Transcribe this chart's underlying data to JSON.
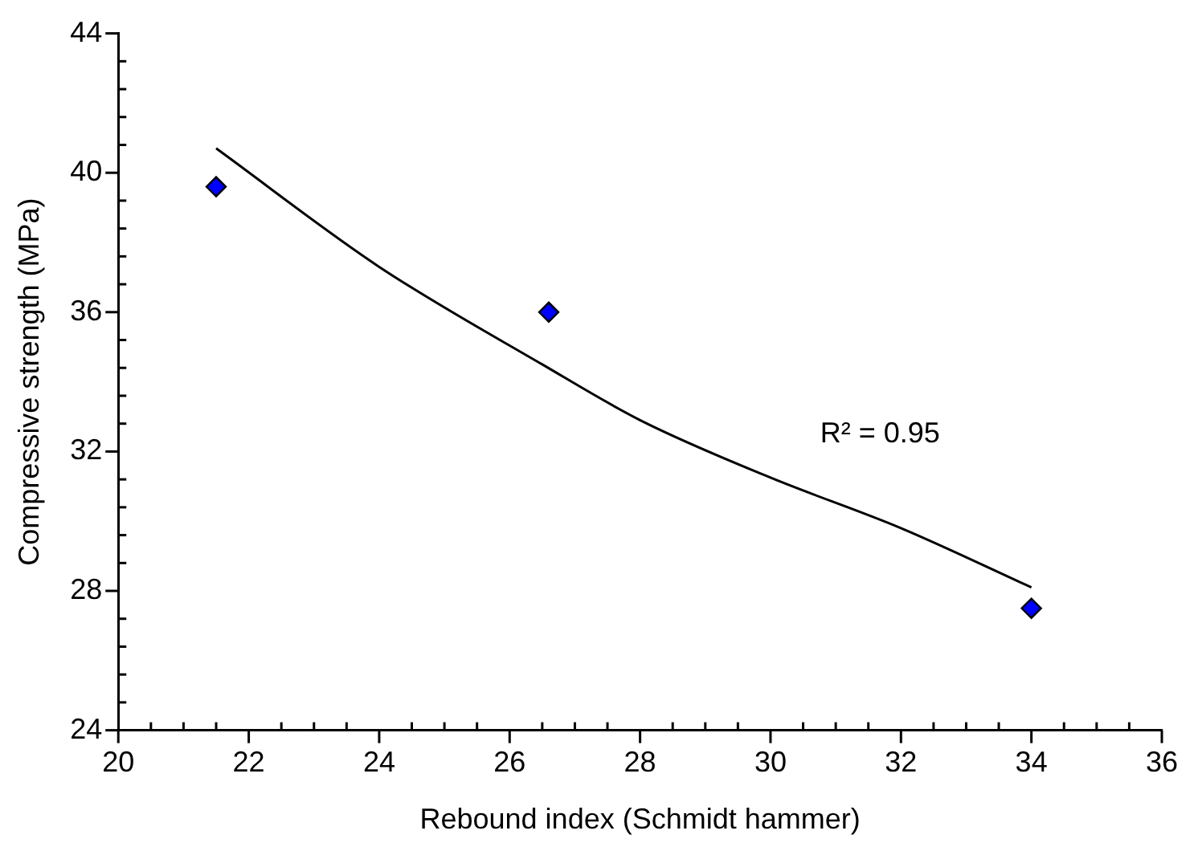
{
  "chart_data": {
    "type": "scatter",
    "xlabel": "Rebound index (Schmidt hammer)",
    "ylabel": "Compressive strength (MPa)",
    "series": [
      {
        "type": "scatter",
        "color": "#0000ff",
        "x": [
          21.5,
          26.6,
          34.0
        ],
        "values": [
          39.6,
          36.0,
          27.5
        ],
        "marker": "diamond"
      },
      {
        "type": "line",
        "color": "#000000",
        "x": [
          21.5,
          24,
          26.5,
          28,
          30,
          32,
          34
        ],
        "values": [
          40.7,
          37.3,
          34.5,
          32.9,
          31.25,
          29.8,
          28.1
        ],
        "marker": "none",
        "line_style": "solid"
      }
    ],
    "xlim": [
      20,
      36
    ],
    "ylim": [
      24,
      44
    ],
    "xticks": [
      20,
      {
        "value": 20.5,
        "label": null
      },
      {
        "value": 21,
        "label": null
      },
      {
        "value": 21.5,
        "label": null
      },
      22,
      {
        "value": 22.5,
        "label": null
      },
      {
        "value": 23,
        "label": null
      },
      {
        "value": 23.5,
        "label": null
      },
      24,
      {
        "value": 24.5,
        "label": null
      },
      {
        "value": 25,
        "label": null
      },
      {
        "value": 25.5,
        "label": null
      },
      26,
      {
        "value": 26.5,
        "label": null
      },
      {
        "value": 27,
        "label": null
      },
      {
        "value": 27.5,
        "label": null
      },
      28,
      {
        "value": 28.5,
        "label": null
      },
      {
        "value": 29,
        "label": null
      },
      {
        "value": 29.5,
        "label": null
      },
      30,
      {
        "value": 30.5,
        "label": null
      },
      {
        "value": 31,
        "label": null
      },
      {
        "value": 31.5,
        "label": null
      },
      32,
      {
        "value": 32.5,
        "label": null
      },
      {
        "value": 33,
        "label": null
      },
      {
        "value": 33.5,
        "label": null
      },
      34,
      {
        "value": 34.5,
        "label": null
      },
      {
        "value": 35,
        "label": null
      },
      {
        "value": 35.5,
        "label": null
      },
      36
    ],
    "yticks": [
      24,
      {
        "value": 24.8,
        "label": null
      },
      {
        "value": 25.6,
        "label": null
      },
      {
        "value": 26.4,
        "label": null
      },
      {
        "value": 27.2,
        "label": null
      },
      28,
      {
        "value": 28.8,
        "label": null
      },
      {
        "value": 29.6,
        "label": null
      },
      {
        "value": 30.4,
        "label": null
      },
      {
        "value": 31.2,
        "label": null
      },
      32,
      {
        "value": 32.8,
        "label": null
      },
      {
        "value": 33.6,
        "label": null
      },
      {
        "value": 34.4,
        "label": null
      },
      {
        "value": 35.2,
        "label": null
      },
      36,
      {
        "value": 36.8,
        "label": null
      },
      {
        "value": 37.6,
        "label": null
      },
      {
        "value": 38.4,
        "label": null
      },
      {
        "value": 39.2,
        "label": null
      },
      40,
      {
        "value": 40.8,
        "label": null
      },
      {
        "value": 41.6,
        "label": null
      },
      {
        "value": 42.4,
        "label": null
      },
      {
        "value": 43.2,
        "label": null
      },
      44
    ],
    "annotations": [
      "R² = 0.95"
    ],
    "grid": false,
    "legend": false
  }
}
